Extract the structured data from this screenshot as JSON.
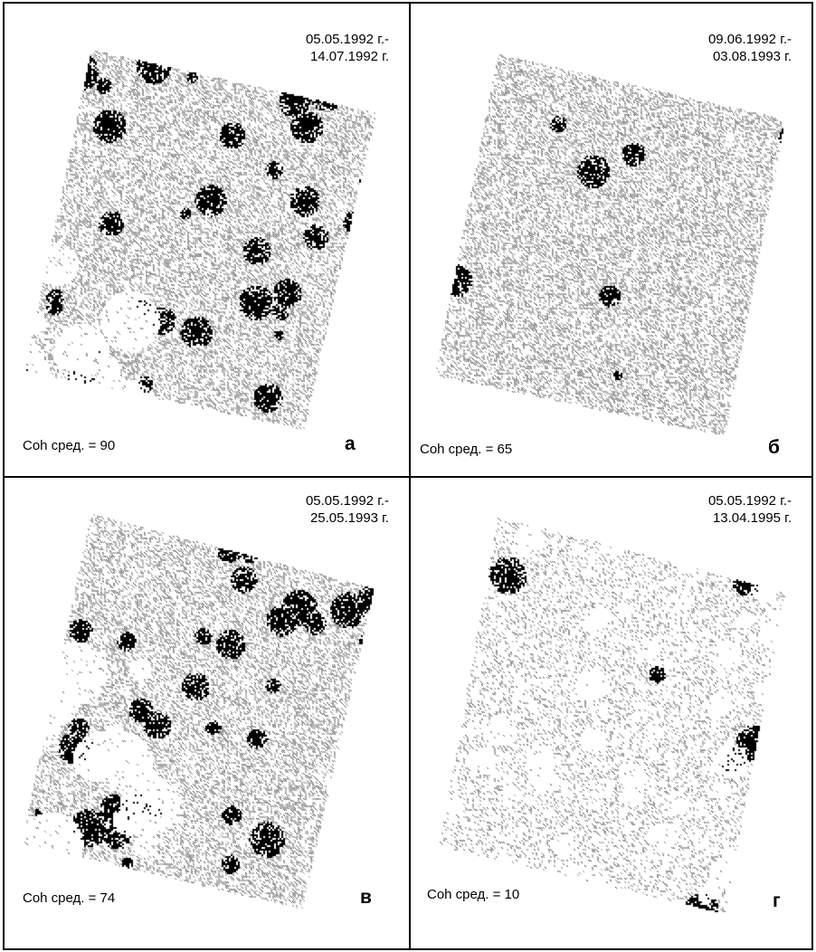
{
  "panels": [
    {
      "letter": "а",
      "date_start": "05.05.1992 г.-",
      "date_end": "14.07.1992 г.",
      "coh_label": "Coh сред. = 90",
      "coherence": 90,
      "dark_mottling": "heavy"
    },
    {
      "letter": "б",
      "date_start": "09.06.1992 г.-",
      "date_end": "03.08.1993 г.",
      "coh_label": "Coh сред. = 65",
      "coherence": 65,
      "dark_mottling": "light"
    },
    {
      "letter": "в",
      "date_start": "05.05.1992 г.-",
      "date_end": "25.05.1993 г.",
      "coh_label": "Coh сред. = 74",
      "coherence": 74,
      "dark_mottling": "heavy"
    },
    {
      "letter": "г",
      "date_start": "05.05.1992 г.-",
      "date_end": "13.04.1995 г.",
      "coh_label": "Coh сред. = 10",
      "coherence": 10,
      "dark_mottling": "sparse"
    }
  ],
  "colors": {
    "ink": "#000000",
    "paper": "#ffffff",
    "speckle": "#7a7a7a"
  }
}
